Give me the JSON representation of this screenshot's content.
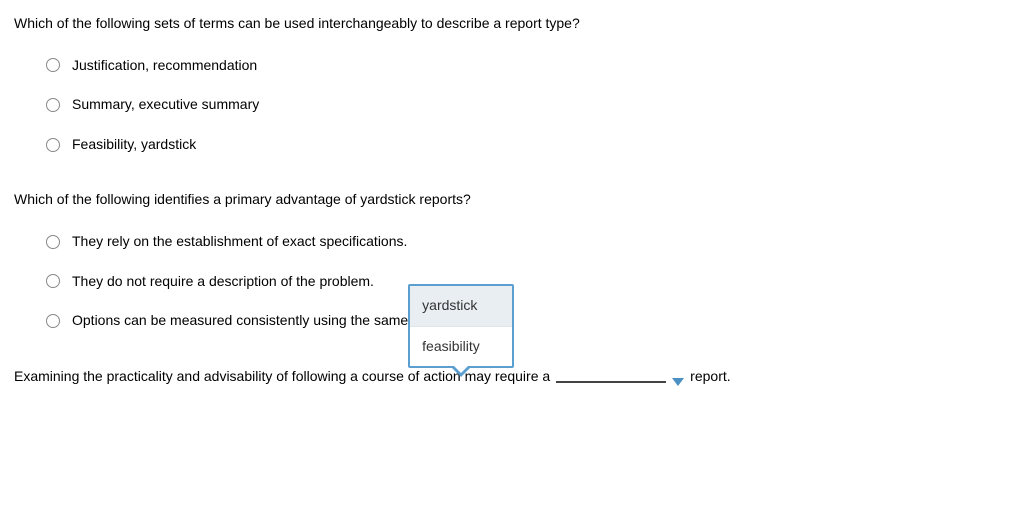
{
  "q1": {
    "prompt": "Which of the following sets of terms can be used interchangeably to describe a report type?",
    "options": [
      "Justification, recommendation",
      "Summary, executive summary",
      "Feasibility, yardstick"
    ]
  },
  "q2": {
    "prompt": "Which of the following identifies a primary advantage of yardstick reports?",
    "options": [
      "They rely on the establishment of exact specifications.",
      "They do not require a description of the problem.",
      "Options can be measured consistently using the same criteria."
    ]
  },
  "q3": {
    "text_before": "Examining the practicality and advisability of following a course of action may require a",
    "text_after": "report.",
    "dropdown": {
      "options": [
        "yardstick",
        "feasibility"
      ],
      "selected_index": 0
    }
  },
  "colors": {
    "radio_border": "#888",
    "blank_line": "#444",
    "dropdown_border": "#5a9fcf",
    "dropdown_selected_bg": "#e8eef2",
    "chevron": "#4a90c2",
    "text": "#000"
  },
  "typography": {
    "font_family": "Verdana, Geneva, sans-serif",
    "font_size_pt": 10.5
  }
}
